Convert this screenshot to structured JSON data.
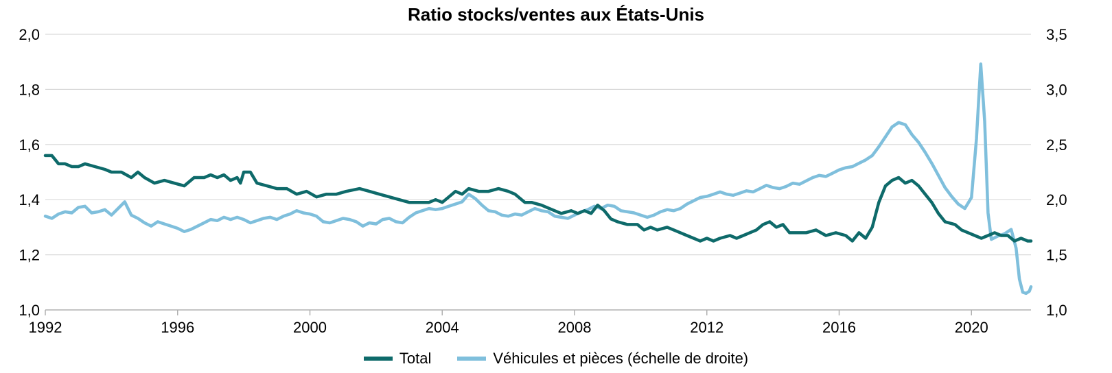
{
  "chart_data": {
    "type": "line",
    "title": "Ratio stocks/ventes aux États-Unis",
    "xlim": [
      1992,
      2021.8
    ],
    "x_ticks": [
      "1992",
      "1996",
      "2000",
      "2004",
      "2008",
      "2012",
      "2016",
      "2020"
    ],
    "y_left": {
      "ylim": [
        1.0,
        2.0
      ],
      "ticks": [
        "1,0",
        "1,2",
        "1,4",
        "1,6",
        "1,8",
        "2,0"
      ]
    },
    "y_right": {
      "ylim": [
        1.0,
        3.5
      ],
      "ticks": [
        "1,0",
        "1,5",
        "2,0",
        "2,5",
        "3,0",
        "3,5"
      ]
    },
    "grid": "horizontal",
    "legend_position": "bottom",
    "series": [
      {
        "name": "Total",
        "axis": "left",
        "color": "#0e6a6a",
        "points": [
          [
            1992.0,
            1.56
          ],
          [
            1992.2,
            1.56
          ],
          [
            1992.4,
            1.53
          ],
          [
            1992.6,
            1.53
          ],
          [
            1992.8,
            1.52
          ],
          [
            1993.0,
            1.52
          ],
          [
            1993.2,
            1.53
          ],
          [
            1993.5,
            1.52
          ],
          [
            1993.8,
            1.51
          ],
          [
            1994.0,
            1.5
          ],
          [
            1994.3,
            1.5
          ],
          [
            1994.6,
            1.48
          ],
          [
            1994.8,
            1.5
          ],
          [
            1995.0,
            1.48
          ],
          [
            1995.3,
            1.46
          ],
          [
            1995.6,
            1.47
          ],
          [
            1995.9,
            1.46
          ],
          [
            1996.2,
            1.45
          ],
          [
            1996.5,
            1.48
          ],
          [
            1996.8,
            1.48
          ],
          [
            1997.0,
            1.49
          ],
          [
            1997.2,
            1.48
          ],
          [
            1997.4,
            1.49
          ],
          [
            1997.6,
            1.47
          ],
          [
            1997.8,
            1.48
          ],
          [
            1997.9,
            1.46
          ],
          [
            1998.0,
            1.5
          ],
          [
            1998.2,
            1.5
          ],
          [
            1998.4,
            1.46
          ],
          [
            1998.7,
            1.45
          ],
          [
            1999.0,
            1.44
          ],
          [
            1999.3,
            1.44
          ],
          [
            1999.6,
            1.42
          ],
          [
            1999.9,
            1.43
          ],
          [
            2000.2,
            1.41
          ],
          [
            2000.5,
            1.42
          ],
          [
            2000.8,
            1.42
          ],
          [
            2001.1,
            1.43
          ],
          [
            2001.5,
            1.44
          ],
          [
            2001.8,
            1.43
          ],
          [
            2002.1,
            1.42
          ],
          [
            2002.4,
            1.41
          ],
          [
            2002.7,
            1.4
          ],
          [
            2003.0,
            1.39
          ],
          [
            2003.3,
            1.39
          ],
          [
            2003.6,
            1.39
          ],
          [
            2003.8,
            1.4
          ],
          [
            2004.0,
            1.39
          ],
          [
            2004.2,
            1.41
          ],
          [
            2004.4,
            1.43
          ],
          [
            2004.6,
            1.42
          ],
          [
            2004.8,
            1.44
          ],
          [
            2005.1,
            1.43
          ],
          [
            2005.4,
            1.43
          ],
          [
            2005.7,
            1.44
          ],
          [
            2006.0,
            1.43
          ],
          [
            2006.2,
            1.42
          ],
          [
            2006.5,
            1.39
          ],
          [
            2006.7,
            1.39
          ],
          [
            2007.0,
            1.38
          ],
          [
            2007.2,
            1.37
          ],
          [
            2007.4,
            1.36
          ],
          [
            2007.6,
            1.35
          ],
          [
            2007.9,
            1.36
          ],
          [
            2008.1,
            1.35
          ],
          [
            2008.3,
            1.36
          ],
          [
            2008.5,
            1.35
          ],
          [
            2008.7,
            1.38
          ],
          [
            2008.9,
            1.36
          ],
          [
            2009.1,
            1.33
          ],
          [
            2009.3,
            1.32
          ],
          [
            2009.6,
            1.31
          ],
          [
            2009.9,
            1.31
          ],
          [
            2010.1,
            1.29
          ],
          [
            2010.3,
            1.3
          ],
          [
            2010.5,
            1.29
          ],
          [
            2010.8,
            1.3
          ],
          [
            2011.0,
            1.29
          ],
          [
            2011.2,
            1.28
          ],
          [
            2011.4,
            1.27
          ],
          [
            2011.6,
            1.26
          ],
          [
            2011.8,
            1.25
          ],
          [
            2012.0,
            1.26
          ],
          [
            2012.2,
            1.25
          ],
          [
            2012.4,
            1.26
          ],
          [
            2012.7,
            1.27
          ],
          [
            2012.9,
            1.26
          ],
          [
            2013.1,
            1.27
          ],
          [
            2013.3,
            1.28
          ],
          [
            2013.5,
            1.29
          ],
          [
            2013.7,
            1.31
          ],
          [
            2013.9,
            1.32
          ],
          [
            2014.1,
            1.3
          ],
          [
            2014.3,
            1.31
          ],
          [
            2014.5,
            1.28
          ],
          [
            2014.8,
            1.28
          ],
          [
            2015.0,
            1.28
          ],
          [
            2015.3,
            1.29
          ],
          [
            2015.6,
            1.27
          ],
          [
            2015.9,
            1.28
          ],
          [
            2016.2,
            1.27
          ],
          [
            2016.4,
            1.25
          ],
          [
            2016.6,
            1.28
          ],
          [
            2016.8,
            1.26
          ],
          [
            2017.0,
            1.3
          ],
          [
            2017.2,
            1.39
          ],
          [
            2017.4,
            1.45
          ],
          [
            2017.6,
            1.47
          ],
          [
            2017.8,
            1.48
          ],
          [
            2018.0,
            1.46
          ],
          [
            2018.2,
            1.47
          ],
          [
            2018.4,
            1.45
          ],
          [
            2018.6,
            1.42
          ],
          [
            2018.8,
            1.39
          ],
          [
            2019.0,
            1.35
          ],
          [
            2019.2,
            1.32
          ],
          [
            2019.5,
            1.31
          ],
          [
            2019.7,
            1.29
          ],
          [
            2019.9,
            1.28
          ],
          [
            2020.1,
            1.27
          ],
          [
            2020.3,
            1.26
          ],
          [
            2020.5,
            1.27
          ],
          [
            2020.7,
            1.28
          ],
          [
            2020.9,
            1.27
          ],
          [
            2021.1,
            1.27
          ],
          [
            2021.3,
            1.25
          ],
          [
            2021.5,
            1.26
          ],
          [
            2021.7,
            1.25
          ],
          [
            2021.8,
            1.25
          ]
        ]
      },
      {
        "name": "Véhicules et pièces (échelle de droite)",
        "axis": "right",
        "color": "#7fbfdc",
        "points": [
          [
            1992.0,
            1.85
          ],
          [
            1992.2,
            1.83
          ],
          [
            1992.4,
            1.87
          ],
          [
            1992.6,
            1.89
          ],
          [
            1992.8,
            1.88
          ],
          [
            1993.0,
            1.93
          ],
          [
            1993.2,
            1.94
          ],
          [
            1993.4,
            1.88
          ],
          [
            1993.6,
            1.89
          ],
          [
            1993.8,
            1.91
          ],
          [
            1994.0,
            1.86
          ],
          [
            1994.2,
            1.92
          ],
          [
            1994.4,
            1.98
          ],
          [
            1994.6,
            1.86
          ],
          [
            1994.8,
            1.83
          ],
          [
            1995.0,
            1.79
          ],
          [
            1995.2,
            1.76
          ],
          [
            1995.4,
            1.8
          ],
          [
            1995.6,
            1.78
          ],
          [
            1995.8,
            1.76
          ],
          [
            1996.0,
            1.74
          ],
          [
            1996.2,
            1.71
          ],
          [
            1996.4,
            1.73
          ],
          [
            1996.6,
            1.76
          ],
          [
            1996.8,
            1.79
          ],
          [
            1997.0,
            1.82
          ],
          [
            1997.2,
            1.81
          ],
          [
            1997.4,
            1.84
          ],
          [
            1997.6,
            1.82
          ],
          [
            1997.8,
            1.84
          ],
          [
            1998.0,
            1.82
          ],
          [
            1998.2,
            1.79
          ],
          [
            1998.4,
            1.81
          ],
          [
            1998.6,
            1.83
          ],
          [
            1998.8,
            1.84
          ],
          [
            1999.0,
            1.82
          ],
          [
            1999.2,
            1.85
          ],
          [
            1999.4,
            1.87
          ],
          [
            1999.6,
            1.9
          ],
          [
            1999.8,
            1.88
          ],
          [
            2000.0,
            1.87
          ],
          [
            2000.2,
            1.85
          ],
          [
            2000.4,
            1.8
          ],
          [
            2000.6,
            1.79
          ],
          [
            2000.8,
            1.81
          ],
          [
            2001.0,
            1.83
          ],
          [
            2001.2,
            1.82
          ],
          [
            2001.4,
            1.8
          ],
          [
            2001.6,
            1.76
          ],
          [
            2001.8,
            1.79
          ],
          [
            2002.0,
            1.78
          ],
          [
            2002.2,
            1.82
          ],
          [
            2002.4,
            1.83
          ],
          [
            2002.6,
            1.8
          ],
          [
            2002.8,
            1.79
          ],
          [
            2003.0,
            1.84
          ],
          [
            2003.2,
            1.88
          ],
          [
            2003.4,
            1.9
          ],
          [
            2003.6,
            1.92
          ],
          [
            2003.8,
            1.91
          ],
          [
            2004.0,
            1.92
          ],
          [
            2004.2,
            1.94
          ],
          [
            2004.4,
            1.96
          ],
          [
            2004.6,
            1.98
          ],
          [
            2004.8,
            2.05
          ],
          [
            2005.0,
            2.01
          ],
          [
            2005.2,
            1.95
          ],
          [
            2005.4,
            1.9
          ],
          [
            2005.6,
            1.89
          ],
          [
            2005.8,
            1.86
          ],
          [
            2006.0,
            1.85
          ],
          [
            2006.2,
            1.87
          ],
          [
            2006.4,
            1.86
          ],
          [
            2006.6,
            1.89
          ],
          [
            2006.8,
            1.92
          ],
          [
            2007.0,
            1.9
          ],
          [
            2007.2,
            1.89
          ],
          [
            2007.4,
            1.85
          ],
          [
            2007.6,
            1.84
          ],
          [
            2007.8,
            1.83
          ],
          [
            2008.0,
            1.86
          ],
          [
            2008.2,
            1.89
          ],
          [
            2008.4,
            1.91
          ],
          [
            2008.6,
            1.94
          ],
          [
            2008.8,
            1.92
          ],
          [
            2009.0,
            1.95
          ],
          [
            2009.2,
            1.94
          ],
          [
            2009.4,
            1.9
          ],
          [
            2009.6,
            1.89
          ],
          [
            2009.8,
            1.88
          ],
          [
            2010.0,
            1.86
          ],
          [
            2010.2,
            1.84
          ],
          [
            2010.4,
            1.86
          ],
          [
            2010.6,
            1.89
          ],
          [
            2010.8,
            1.91
          ],
          [
            2011.0,
            1.9
          ],
          [
            2011.2,
            1.92
          ],
          [
            2011.4,
            1.96
          ],
          [
            2011.6,
            1.99
          ],
          [
            2011.8,
            2.02
          ],
          [
            2012.0,
            2.03
          ],
          [
            2012.2,
            2.05
          ],
          [
            2012.4,
            2.07
          ],
          [
            2012.6,
            2.05
          ],
          [
            2012.8,
            2.04
          ],
          [
            2013.0,
            2.06
          ],
          [
            2013.2,
            2.08
          ],
          [
            2013.4,
            2.07
          ],
          [
            2013.6,
            2.1
          ],
          [
            2013.8,
            2.13
          ],
          [
            2014.0,
            2.11
          ],
          [
            2014.2,
            2.1
          ],
          [
            2014.4,
            2.12
          ],
          [
            2014.6,
            2.15
          ],
          [
            2014.8,
            2.14
          ],
          [
            2015.0,
            2.17
          ],
          [
            2015.2,
            2.2
          ],
          [
            2015.4,
            2.22
          ],
          [
            2015.6,
            2.21
          ],
          [
            2015.8,
            2.24
          ],
          [
            2016.0,
            2.27
          ],
          [
            2016.2,
            2.29
          ],
          [
            2016.4,
            2.3
          ],
          [
            2016.6,
            2.33
          ],
          [
            2016.8,
            2.36
          ],
          [
            2017.0,
            2.4
          ],
          [
            2017.2,
            2.48
          ],
          [
            2017.4,
            2.57
          ],
          [
            2017.6,
            2.66
          ],
          [
            2017.8,
            2.7
          ],
          [
            2018.0,
            2.68
          ],
          [
            2018.2,
            2.59
          ],
          [
            2018.4,
            2.52
          ],
          [
            2018.6,
            2.43
          ],
          [
            2018.8,
            2.33
          ],
          [
            2019.0,
            2.22
          ],
          [
            2019.2,
            2.11
          ],
          [
            2019.4,
            2.03
          ],
          [
            2019.6,
            1.96
          ],
          [
            2019.8,
            1.92
          ],
          [
            2020.0,
            2.02
          ],
          [
            2020.15,
            2.55
          ],
          [
            2020.28,
            3.23
          ],
          [
            2020.4,
            2.71
          ],
          [
            2020.5,
            1.88
          ],
          [
            2020.6,
            1.64
          ],
          [
            2020.8,
            1.67
          ],
          [
            2021.0,
            1.69
          ],
          [
            2021.2,
            1.73
          ],
          [
            2021.35,
            1.56
          ],
          [
            2021.45,
            1.28
          ],
          [
            2021.55,
            1.16
          ],
          [
            2021.65,
            1.15
          ],
          [
            2021.75,
            1.17
          ],
          [
            2021.8,
            1.21
          ]
        ]
      }
    ]
  }
}
